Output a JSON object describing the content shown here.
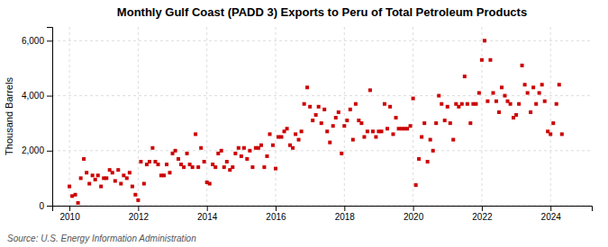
{
  "chart_data": {
    "type": "scatter",
    "title": "Monthly Gulf Coast (PADD 3) Exports to Peru of Total Petroleum Products",
    "y_label": "Thousand Barrels",
    "annotations": [
      "Source: U.S. Energy Information Administration"
    ],
    "color": "#cc0000",
    "marker": "square",
    "grid": true,
    "xlim": [
      2009.5,
      2025.2
    ],
    "xticks": [
      2010,
      2012,
      2014,
      2016,
      2018,
      2020,
      2022,
      2024
    ],
    "ylim": [
      0,
      6500
    ],
    "yticks": [
      0,
      {
        "value": 2000,
        "label": "2,000"
      },
      {
        "value": 4000,
        "label": "4,000"
      },
      {
        "value": 6000,
        "label": "6,000"
      }
    ],
    "x": [
      2010.0,
      2010.08,
      2010.17,
      2010.25,
      2010.33,
      2010.42,
      2010.5,
      2010.58,
      2010.67,
      2010.75,
      2010.83,
      2010.92,
      2011.0,
      2011.08,
      2011.17,
      2011.25,
      2011.33,
      2011.42,
      2011.5,
      2011.58,
      2011.67,
      2011.75,
      2011.83,
      2011.92,
      2012.0,
      2012.08,
      2012.17,
      2012.25,
      2012.33,
      2012.42,
      2012.5,
      2012.58,
      2012.67,
      2012.75,
      2012.83,
      2012.92,
      2013.0,
      2013.08,
      2013.17,
      2013.25,
      2013.33,
      2013.42,
      2013.5,
      2013.58,
      2013.67,
      2013.75,
      2013.83,
      2013.92,
      2014.0,
      2014.08,
      2014.17,
      2014.25,
      2014.33,
      2014.42,
      2014.5,
      2014.58,
      2014.67,
      2014.75,
      2014.83,
      2014.92,
      2015.0,
      2015.08,
      2015.17,
      2015.25,
      2015.33,
      2015.42,
      2015.5,
      2015.58,
      2015.67,
      2015.75,
      2015.83,
      2015.92,
      2016.0,
      2016.08,
      2016.17,
      2016.25,
      2016.33,
      2016.42,
      2016.5,
      2016.58,
      2016.67,
      2016.75,
      2016.83,
      2016.92,
      2017.0,
      2017.08,
      2017.17,
      2017.25,
      2017.33,
      2017.42,
      2017.5,
      2017.58,
      2017.67,
      2017.75,
      2017.83,
      2017.92,
      2018.0,
      2018.08,
      2018.17,
      2018.25,
      2018.33,
      2018.42,
      2018.5,
      2018.58,
      2018.67,
      2018.75,
      2018.83,
      2018.92,
      2019.0,
      2019.08,
      2019.17,
      2019.25,
      2019.33,
      2019.42,
      2019.5,
      2019.58,
      2019.67,
      2019.75,
      2019.83,
      2019.92,
      2020.0,
      2020.08,
      2020.17,
      2020.25,
      2020.33,
      2020.42,
      2020.5,
      2020.58,
      2020.67,
      2020.75,
      2020.83,
      2020.92,
      2021.0,
      2021.08,
      2021.17,
      2021.25,
      2021.33,
      2021.42,
      2021.5,
      2021.58,
      2021.67,
      2021.75,
      2021.83,
      2021.92,
      2022.0,
      2022.08,
      2022.17,
      2022.25,
      2022.33,
      2022.42,
      2022.5,
      2022.58,
      2022.67,
      2022.75,
      2022.83,
      2022.92,
      2023.0,
      2023.08,
      2023.17,
      2023.25,
      2023.33,
      2023.42,
      2023.5,
      2023.58,
      2023.67,
      2023.75,
      2023.83,
      2023.92,
      2024.0,
      2024.08,
      2024.17,
      2024.25,
      2024.33
    ],
    "values": [
      700,
      350,
      400,
      100,
      1000,
      1700,
      1200,
      800,
      1100,
      950,
      1100,
      700,
      1000,
      1000,
      1300,
      1200,
      900,
      1300,
      800,
      1100,
      1000,
      1200,
      700,
      400,
      200,
      1600,
      800,
      1500,
      1600,
      2100,
      1600,
      1500,
      1100,
      1100,
      1500,
      1200,
      1900,
      2000,
      1700,
      1500,
      1400,
      1900,
      1500,
      1400,
      2600,
      1400,
      2100,
      1600,
      850,
      800,
      1500,
      1400,
      1900,
      2000,
      1400,
      1600,
      1300,
      1400,
      1900,
      2100,
      1800,
      2100,
      1700,
      2000,
      1400,
      2100,
      2100,
      2200,
      1400,
      1800,
      2600,
      2200,
      1350,
      2500,
      2500,
      2700,
      2800,
      2200,
      2100,
      2600,
      2400,
      2700,
      3700,
      4300,
      3600,
      3100,
      3300,
      3600,
      3000,
      3500,
      2700,
      2300,
      2900,
      3200,
      3400,
      1900,
      2900,
      3100,
      3500,
      2400,
      3700,
      3100,
      3000,
      2500,
      2700,
      4200,
      2700,
      2500,
      2700,
      2700,
      3700,
      2800,
      3600,
      2600,
      3200,
      2800,
      2800,
      2800,
      2800,
      2900,
      3900,
      750,
      1700,
      2500,
      3000,
      1600,
      2400,
      2000,
      3000,
      4000,
      3700,
      3100,
      3600,
      3000,
      2400,
      3700,
      3600,
      3700,
      4700,
      3700,
      3000,
      3700,
      3700,
      4100,
      5300,
      6000,
      3800,
      5300,
      4100,
      3800,
      3400,
      4300,
      4000,
      3800,
      3700,
      3200,
      3300,
      3700,
      5100,
      4400,
      4100,
      3400,
      4300,
      3700,
      4100,
      4400,
      3800,
      2700,
      2600,
      3000,
      3700,
      4400,
      2600
    ]
  }
}
